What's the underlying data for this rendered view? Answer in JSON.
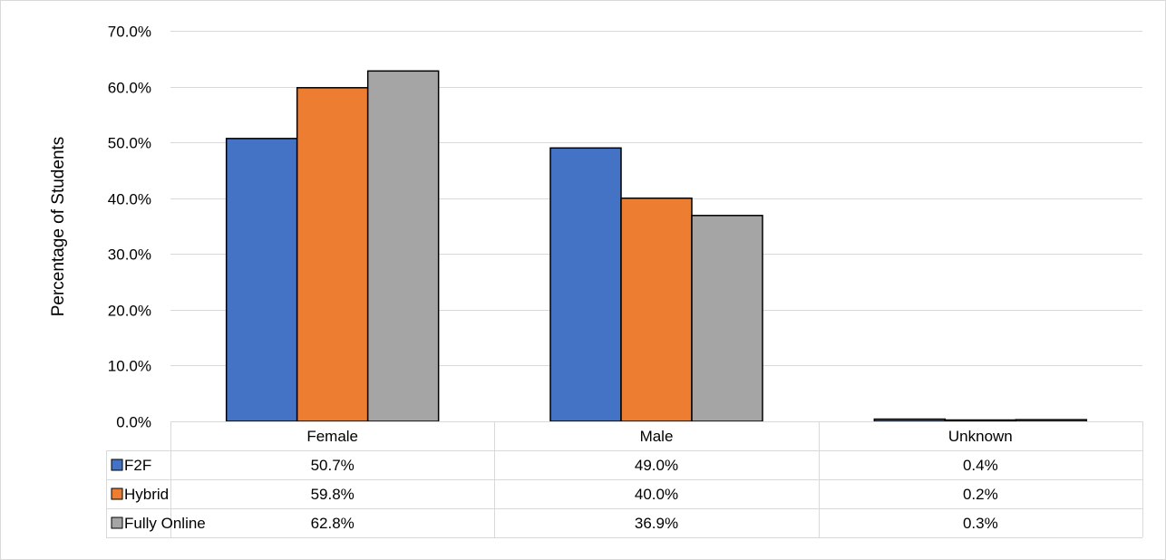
{
  "chart_data": {
    "type": "bar",
    "title": "",
    "xlabel": "",
    "ylabel": "Percentage of Students",
    "ylim": [
      0,
      70
    ],
    "y_ticks": [
      "0.0%",
      "10.0%",
      "20.0%",
      "30.0%",
      "40.0%",
      "50.0%",
      "60.0%",
      "70.0%"
    ],
    "y_tick_values": [
      0,
      10,
      20,
      30,
      40,
      50,
      60,
      70
    ],
    "categories": [
      "Female",
      "Male",
      "Unknown"
    ],
    "grid": true,
    "legend": "data-table",
    "series": [
      {
        "name": "F2F",
        "color": "#4472C4",
        "values": [
          50.7,
          49.0,
          0.4
        ],
        "labels": [
          "50.7%",
          "49.0%",
          "0.4%"
        ]
      },
      {
        "name": "Hybrid",
        "color": "#ED7D31",
        "values": [
          59.8,
          40.0,
          0.2
        ],
        "labels": [
          "59.8%",
          "40.0%",
          "0.2%"
        ]
      },
      {
        "name": "Fully Online",
        "color": "#A5A5A5",
        "values": [
          62.8,
          36.9,
          0.3
        ],
        "labels": [
          "62.8%",
          "36.9%",
          "0.3%"
        ]
      }
    ]
  }
}
